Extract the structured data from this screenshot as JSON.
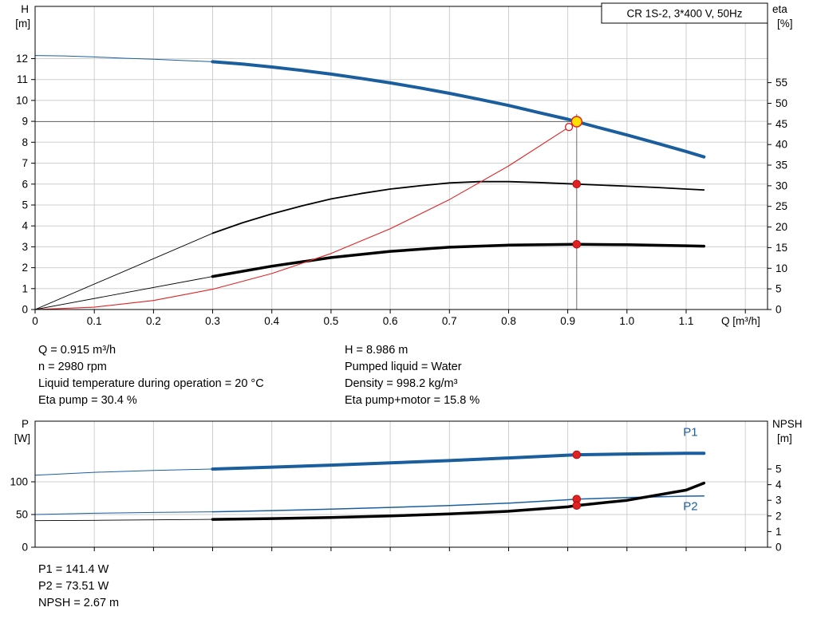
{
  "colors": {
    "curve_blue": "#1b5e9e",
    "curve_black": "#000000",
    "curve_red": "#e02222",
    "marker_yellow": "#ffe000",
    "marker_red": "#e02222",
    "grid": "#cfcfcf",
    "guide": "#6e6e6e",
    "text": "#000000"
  },
  "info_top": {
    "left": [
      "Q = 0.915 m³/h",
      "n = 2980 rpm",
      "Liquid temperature during operation = 20 °C",
      "Eta pump = 30.4 %"
    ],
    "right": [
      "H = 8.986 m",
      "Pumped liquid = Water",
      "Density = 998.2 kg/m³",
      "Eta pump+motor = 15.8 %"
    ]
  },
  "info_bottom": [
    "P1 = 141.4 W",
    "P2 = 73.51 W",
    "NPSH = 2.67 m"
  ],
  "chart_data": [
    {
      "type": "line",
      "name": "hq-eta-chart",
      "title_box": "CR 1S-2, 3*400 V, 50Hz",
      "x": {
        "min": 0,
        "max": 1.2375,
        "label": "Q [m³/h]",
        "ticks": [
          {
            "v": 0,
            "l": "0"
          },
          {
            "v": 0.1,
            "l": "0.1"
          },
          {
            "v": 0.2,
            "l": "0.2"
          },
          {
            "v": 0.3,
            "l": "0.3"
          },
          {
            "v": 0.4,
            "l": "0.4"
          },
          {
            "v": 0.5,
            "l": "0.5"
          },
          {
            "v": 0.6,
            "l": "0.6"
          },
          {
            "v": 0.7,
            "l": "0.7"
          },
          {
            "v": 0.8,
            "l": "0.8"
          },
          {
            "v": 0.9,
            "l": "0.9"
          },
          {
            "v": 1.0,
            "l": "1.0"
          },
          {
            "v": 1.1,
            "l": "1.1"
          },
          {
            "v": 1.2,
            "l": ""
          }
        ]
      },
      "y_left": {
        "min": 0,
        "max": 14.5,
        "label": "H",
        "unit": "[m]",
        "ticks": [
          {
            "v": 0,
            "l": "0",
            "grid": false
          },
          {
            "v": 1,
            "l": "1",
            "grid": true
          },
          {
            "v": 2,
            "l": "2",
            "grid": true
          },
          {
            "v": 3,
            "l": "3",
            "grid": true
          },
          {
            "v": 4,
            "l": "4",
            "grid": true
          },
          {
            "v": 5,
            "l": "5",
            "grid": true
          },
          {
            "v": 6,
            "l": "6",
            "grid": true
          },
          {
            "v": 7,
            "l": "7",
            "grid": true
          },
          {
            "v": 8,
            "l": "8",
            "grid": true
          },
          {
            "v": 9,
            "l": "9",
            "grid": true
          },
          {
            "v": 10,
            "l": "10",
            "grid": true
          },
          {
            "v": 11,
            "l": "11",
            "grid": true
          },
          {
            "v": 12,
            "l": "12",
            "grid": true
          }
        ]
      },
      "y_right": {
        "min": 0,
        "max": 73.5,
        "label": "eta",
        "unit": "[%]",
        "ticks": [
          {
            "v": 0,
            "l": "0"
          },
          {
            "v": 5,
            "l": "5"
          },
          {
            "v": 10,
            "l": "10"
          },
          {
            "v": 15,
            "l": "15"
          },
          {
            "v": 20,
            "l": "20"
          },
          {
            "v": 25,
            "l": "25"
          },
          {
            "v": 30,
            "l": "30"
          },
          {
            "v": 35,
            "l": "35"
          },
          {
            "v": 40,
            "l": "40"
          },
          {
            "v": 45,
            "l": "45"
          },
          {
            "v": 50,
            "l": "50"
          },
          {
            "v": 55,
            "l": "55"
          }
        ]
      },
      "guides": [
        {
          "type": "h",
          "y": 8.986,
          "x1": 0,
          "x2": 0.915
        },
        {
          "type": "v",
          "x": 0.915,
          "y1": 0,
          "y2": 9.35
        }
      ],
      "series": [
        {
          "name": "qh-curve-low-flow",
          "axis": "left",
          "color": "#1b5e9e",
          "width": 1,
          "x": [
            0,
            0.05,
            0.1,
            0.15,
            0.2,
            0.25,
            0.3
          ],
          "y": [
            12.15,
            12.13,
            12.08,
            12.02,
            11.97,
            11.91,
            11.85
          ]
        },
        {
          "name": "qh-curve",
          "axis": "left",
          "color": "#1b5e9e",
          "width": 4,
          "x": [
            0.3,
            0.35,
            0.4,
            0.45,
            0.5,
            0.55,
            0.6,
            0.65,
            0.7,
            0.75,
            0.8,
            0.85,
            0.9,
            0.915,
            0.95,
            1.0,
            1.05,
            1.1,
            1.13
          ],
          "y": [
            11.85,
            11.74,
            11.6,
            11.44,
            11.26,
            11.06,
            10.84,
            10.6,
            10.34,
            10.06,
            9.76,
            9.43,
            9.1,
            8.986,
            8.72,
            8.35,
            7.96,
            7.56,
            7.3
          ]
        },
        {
          "name": "eta-pump-low-flow-line",
          "axis": "right",
          "color": "#000000",
          "width": 0.9,
          "x": [
            0,
            0.3
          ],
          "y": [
            0,
            18.5
          ]
        },
        {
          "name": "eta-pump-curve",
          "axis": "right",
          "color": "#000000",
          "width": 1.8,
          "x": [
            0.3,
            0.35,
            0.4,
            0.45,
            0.5,
            0.55,
            0.6,
            0.65,
            0.7,
            0.75,
            0.8,
            0.85,
            0.9,
            0.915,
            0.95,
            1.0,
            1.05,
            1.1,
            1.13
          ],
          "y": [
            18.5,
            21,
            23.2,
            25.1,
            26.8,
            28.1,
            29.2,
            30,
            30.7,
            31,
            31,
            30.8,
            30.5,
            30.4,
            30.2,
            29.9,
            29.6,
            29.2,
            29
          ]
        },
        {
          "name": "eta-motor-low-flow-line",
          "axis": "right",
          "color": "#000000",
          "width": 0.9,
          "x": [
            0,
            0.3
          ],
          "y": [
            0,
            8
          ]
        },
        {
          "name": "eta-pump-motor-curve",
          "axis": "right",
          "color": "#000000",
          "width": 3.5,
          "x": [
            0.3,
            0.4,
            0.5,
            0.6,
            0.7,
            0.8,
            0.9,
            0.915,
            1.0,
            1.1,
            1.13
          ],
          "y": [
            8,
            10.5,
            12.6,
            14.1,
            15.1,
            15.6,
            15.79,
            15.8,
            15.7,
            15.45,
            15.35
          ]
        },
        {
          "name": "system-curve",
          "axis": "left",
          "color": "#e02222",
          "width": 1.1,
          "x": [
            0,
            0.1,
            0.2,
            0.3,
            0.4,
            0.5,
            0.6,
            0.7,
            0.8,
            0.9,
            0.915
          ],
          "y": [
            0,
            0.11,
            0.43,
            0.97,
            1.72,
            2.68,
            3.86,
            5.26,
            6.87,
            8.69,
            8.986
          ]
        }
      ],
      "markers": [
        {
          "name": "system-curve-end-marker",
          "x": 0.902,
          "y": 8.73,
          "axis": "left",
          "r": 4.5,
          "fill": "#ffffff",
          "stroke": "#e02222",
          "sw": 1.3,
          "interactable": false
        },
        {
          "name": "duty-point-marker",
          "x": 0.915,
          "y": 8.986,
          "axis": "left",
          "r": 6.5,
          "fill": "#ffe000",
          "stroke": "#e02222",
          "sw": 1.5,
          "interactable": true
        },
        {
          "name": "eta-pump-point-marker",
          "x": 0.915,
          "y": 30.4,
          "axis": "right",
          "r": 4.8,
          "fill": "#e02222",
          "stroke": "#b01010",
          "sw": 1,
          "interactable": false
        },
        {
          "name": "eta-motor-point-marker",
          "x": 0.915,
          "y": 15.8,
          "axis": "right",
          "r": 4.8,
          "fill": "#e02222",
          "stroke": "#b01010",
          "sw": 1,
          "interactable": false
        }
      ],
      "labels": []
    },
    {
      "type": "line",
      "name": "power-npsh-chart",
      "x": {
        "min": 0,
        "max": 1.2375,
        "label": "",
        "ticks": [
          {
            "v": 0.1,
            "l": ""
          },
          {
            "v": 0.2,
            "l": ""
          },
          {
            "v": 0.3,
            "l": ""
          },
          {
            "v": 0.4,
            "l": ""
          },
          {
            "v": 0.5,
            "l": ""
          },
          {
            "v": 0.6,
            "l": ""
          },
          {
            "v": 0.7,
            "l": ""
          },
          {
            "v": 0.8,
            "l": ""
          },
          {
            "v": 0.9,
            "l": ""
          },
          {
            "v": 1.0,
            "l": ""
          },
          {
            "v": 1.1,
            "l": ""
          },
          {
            "v": 1.2,
            "l": ""
          }
        ]
      },
      "y_left": {
        "min": 0,
        "max": 192.7,
        "label": "P",
        "unit": "[W]",
        "ticks": [
          {
            "v": 0,
            "l": "0",
            "grid": false
          },
          {
            "v": 50,
            "l": "50",
            "grid": true
          },
          {
            "v": 100,
            "l": "100",
            "grid": true
          }
        ]
      },
      "y_right": {
        "min": 0,
        "max": 8.06,
        "label": "NPSH",
        "unit": "[m]",
        "ticks": [
          {
            "v": 0,
            "l": "0"
          },
          {
            "v": 1,
            "l": "1"
          },
          {
            "v": 2,
            "l": "2"
          },
          {
            "v": 3,
            "l": "3"
          },
          {
            "v": 4,
            "l": "4"
          },
          {
            "v": 5,
            "l": "5"
          }
        ]
      },
      "guides": [],
      "series": [
        {
          "name": "p1-curve-low-flow",
          "axis": "left",
          "color": "#1b5e9e",
          "width": 1,
          "x": [
            0,
            0.1,
            0.2,
            0.3
          ],
          "y": [
            110,
            114.5,
            117.5,
            119.5
          ]
        },
        {
          "name": "p1-curve",
          "axis": "left",
          "color": "#1b5e9e",
          "width": 4,
          "x": [
            0.3,
            0.4,
            0.5,
            0.6,
            0.7,
            0.8,
            0.9,
            0.915,
            1.0,
            1.1,
            1.13
          ],
          "y": [
            119.5,
            122.5,
            125.5,
            129,
            132.5,
            136.5,
            140.8,
            141.4,
            142.6,
            143.6,
            143.7
          ]
        },
        {
          "name": "p2-curve-low-flow",
          "axis": "left",
          "color": "#1b5e9e",
          "width": 1,
          "x": [
            0,
            0.1,
            0.2,
            0.3
          ],
          "y": [
            50,
            52,
            53.2,
            54.2
          ]
        },
        {
          "name": "p2-curve",
          "axis": "left",
          "color": "#1b5e9e",
          "width": 1.5,
          "x": [
            0.3,
            0.4,
            0.5,
            0.6,
            0.7,
            0.8,
            0.9,
            0.915,
            1.0,
            1.1,
            1.13
          ],
          "y": [
            54.2,
            56,
            58.2,
            60.8,
            63.8,
            67.4,
            72.6,
            73.51,
            76,
            78,
            78.3
          ]
        },
        {
          "name": "npsh-curve-low-flow",
          "axis": "right",
          "color": "#000000",
          "width": 0.9,
          "x": [
            0,
            0.1,
            0.2,
            0.3
          ],
          "y": [
            1.7,
            1.72,
            1.75,
            1.78
          ]
        },
        {
          "name": "npsh-curve",
          "axis": "right",
          "color": "#000000",
          "width": 3.5,
          "x": [
            0.3,
            0.4,
            0.5,
            0.6,
            0.7,
            0.8,
            0.9,
            0.915,
            1.0,
            1.1,
            1.13
          ],
          "y": [
            1.78,
            1.83,
            1.9,
            2.0,
            2.13,
            2.3,
            2.58,
            2.67,
            3.0,
            3.65,
            4.1
          ]
        }
      ],
      "markers": [
        {
          "name": "p1-point-marker",
          "x": 0.915,
          "y": 141.4,
          "axis": "left",
          "r": 4.8,
          "fill": "#e02222",
          "stroke": "#b01010",
          "sw": 1,
          "interactable": false
        },
        {
          "name": "p2-point-marker",
          "x": 0.915,
          "y": 73.51,
          "axis": "left",
          "r": 4.8,
          "fill": "#e02222",
          "stroke": "#b01010",
          "sw": 1,
          "interactable": false
        },
        {
          "name": "npsh-point-marker",
          "x": 0.915,
          "y": 2.67,
          "axis": "right",
          "r": 4.8,
          "fill": "#e02222",
          "stroke": "#b01010",
          "sw": 1,
          "interactable": false
        }
      ],
      "labels": [
        {
          "text": "P1",
          "x": 1.095,
          "y": 170,
          "axis": "left",
          "color": "#1b5e9e"
        },
        {
          "text": "P2",
          "x": 1.095,
          "y": 57,
          "axis": "left",
          "color": "#1b5e9e"
        }
      ]
    }
  ]
}
